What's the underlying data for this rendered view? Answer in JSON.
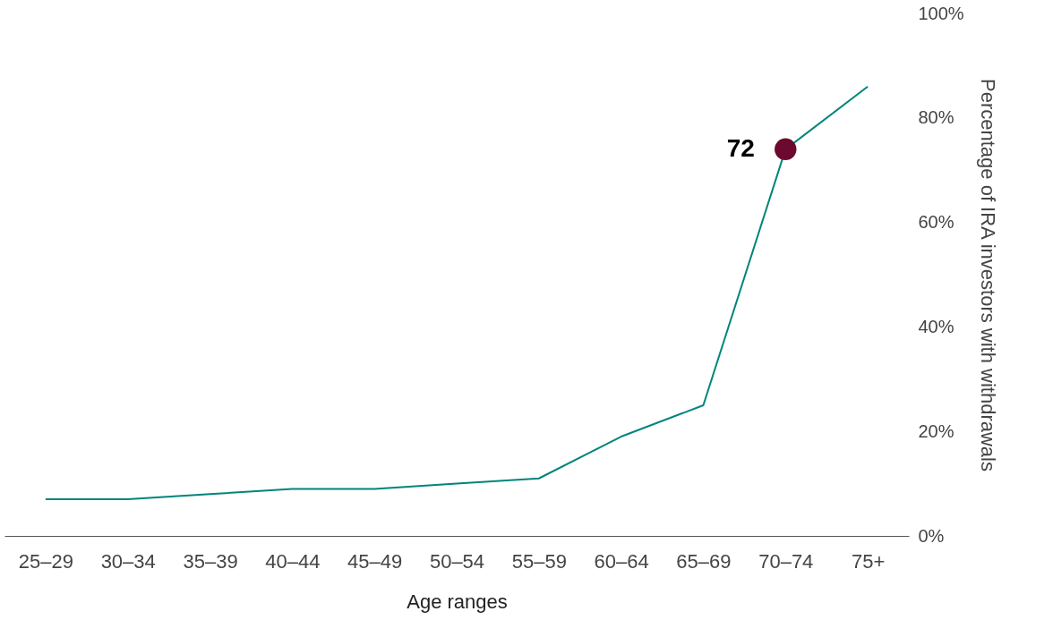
{
  "chart_data": {
    "type": "line",
    "xlabel": "Age ranges",
    "ylabel": "Percentage of IRA investors with withdrawals",
    "categories": [
      "25–29",
      "30–34",
      "35–39",
      "40–44",
      "45–49",
      "50–54",
      "55–59",
      "60–64",
      "65–69",
      "70–74",
      "75+"
    ],
    "series": [
      {
        "color": "#00857a",
        "values": [
          7,
          7,
          8,
          9,
          9,
          10,
          11,
          19,
          25,
          74,
          86
        ]
      },
      {
        "type": "scatter",
        "color": "#6b0a2e",
        "x": [
          "70–74"
        ],
        "values": [
          74
        ]
      }
    ],
    "annotations": [
      {
        "text": "72",
        "x": "70–74",
        "y": 74
      }
    ],
    "ylim": [
      0,
      100
    ],
    "yticks": [
      {
        "value": 0,
        "label": "0%"
      },
      {
        "value": 20,
        "label": "20%"
      },
      {
        "value": 40,
        "label": "40%"
      },
      {
        "value": 60,
        "label": "60%"
      },
      {
        "value": 80,
        "label": "80%"
      },
      {
        "value": 100,
        "label": "100%"
      }
    ],
    "grid": false,
    "line_style": "solid"
  }
}
